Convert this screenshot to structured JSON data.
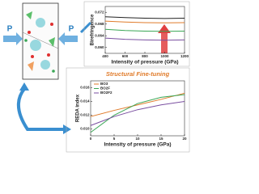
{
  "chart_data": [
    {
      "type": "line",
      "ylabel": "Birefringence",
      "xlabel": "Intensity of pressure (GPa)",
      "x": [
        400,
        600,
        800,
        1000,
        1200
      ],
      "xlim": [
        400,
        1200
      ],
      "xticks": [
        400,
        600,
        800,
        1000,
        1200
      ],
      "ylim": [
        0.058,
        0.074
      ],
      "yticks": [
        {
          "value": 0.06,
          "label": "0.060"
        },
        {
          "value": 0.064,
          "label": "0.064"
        },
        {
          "value": 0.068,
          "label": "0.068"
        },
        {
          "value": 0.072,
          "label": "0.072"
        }
      ],
      "series": [
        {
          "color": "#222222",
          "values": [
            0.0705,
            0.0702,
            0.07,
            0.0699,
            0.07
          ]
        },
        {
          "color": "#e07b2a",
          "values": [
            0.069,
            0.0687,
            0.0685,
            0.0684,
            0.0685
          ]
        },
        {
          "color": "#3aa655",
          "values": [
            0.0662,
            0.0658,
            0.0656,
            0.0655,
            0.0656
          ]
        },
        {
          "color": "#7a4fa0",
          "values": [
            0.0632,
            0.0628,
            0.0626,
            0.0625,
            0.0626
          ]
        }
      ]
    },
    {
      "type": "line",
      "title": "Structural Fine-tuning",
      "ylabel": "REDA index",
      "xlabel": "Intensity of pressure (GPa)",
      "x": [
        0,
        5,
        10,
        15,
        20
      ],
      "xlim": [
        0,
        20
      ],
      "xticks": [
        0,
        5,
        10,
        15,
        20
      ],
      "ylim": [
        0.009,
        0.017
      ],
      "yticks": [
        {
          "value": 0.01,
          "label": "0.010"
        },
        {
          "value": 0.012,
          "label": "0.012"
        },
        {
          "value": 0.014,
          "label": "0.014"
        },
        {
          "value": 0.016,
          "label": "0.016"
        }
      ],
      "series": [
        {
          "name": "BO3",
          "color": "#e07b2a",
          "values": [
            0.0118,
            0.0127,
            0.0135,
            0.0143,
            0.0152
          ]
        },
        {
          "name": "BO2F",
          "color": "#3aa655",
          "values": [
            0.0095,
            0.012,
            0.0137,
            0.0146,
            0.015
          ]
        },
        {
          "name": "BO2F2",
          "color": "#7a4fa0",
          "values": [
            0.0105,
            0.0118,
            0.0128,
            0.0135,
            0.014
          ]
        }
      ]
    }
  ],
  "annotations": {
    "pressure_left": "P",
    "pressure_right": "P"
  }
}
